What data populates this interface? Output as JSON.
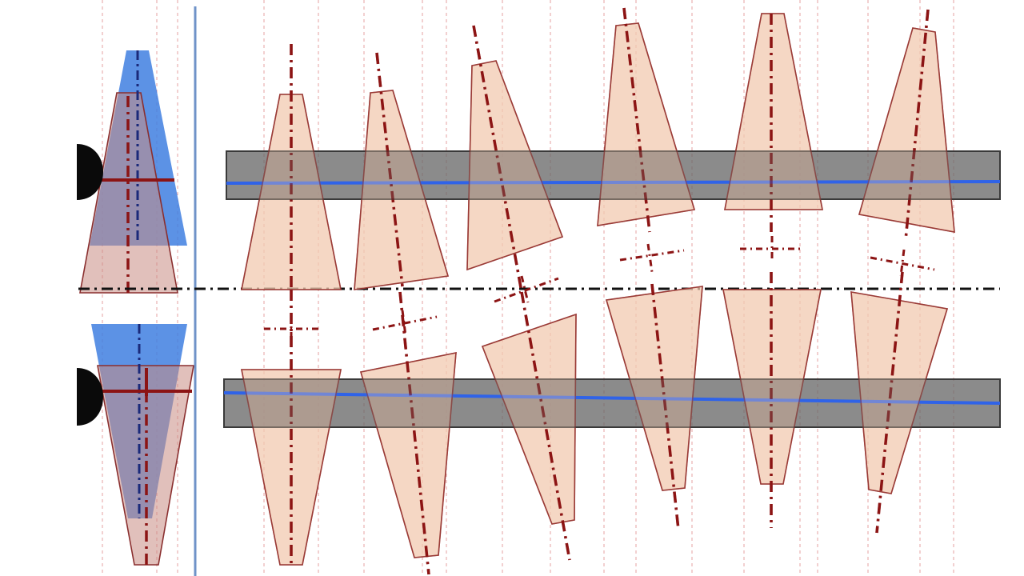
{
  "diagram": {
    "colors": {
      "background": "#ffffff",
      "trapezoid_fill": "#f2c9b0",
      "trapezoid_stroke": "#9a3a36",
      "axis": "#8c1414",
      "band": "#6a6a6a",
      "band_line": "#2f63e8",
      "blue_wedge": "#3f7fe0",
      "midline": "#111111",
      "grid": "#e6a0a0",
      "separator": "#6f93c8",
      "eye": "#0a0a0a"
    },
    "upper_row_tilts_deg": [
      0,
      -5,
      -12,
      -8,
      0,
      5
    ],
    "lower_row_tilts_deg": [
      0,
      -5,
      -12,
      -8,
      0,
      5
    ],
    "icons": [
      "head-profile-icon",
      "head-profile-icon"
    ]
  }
}
